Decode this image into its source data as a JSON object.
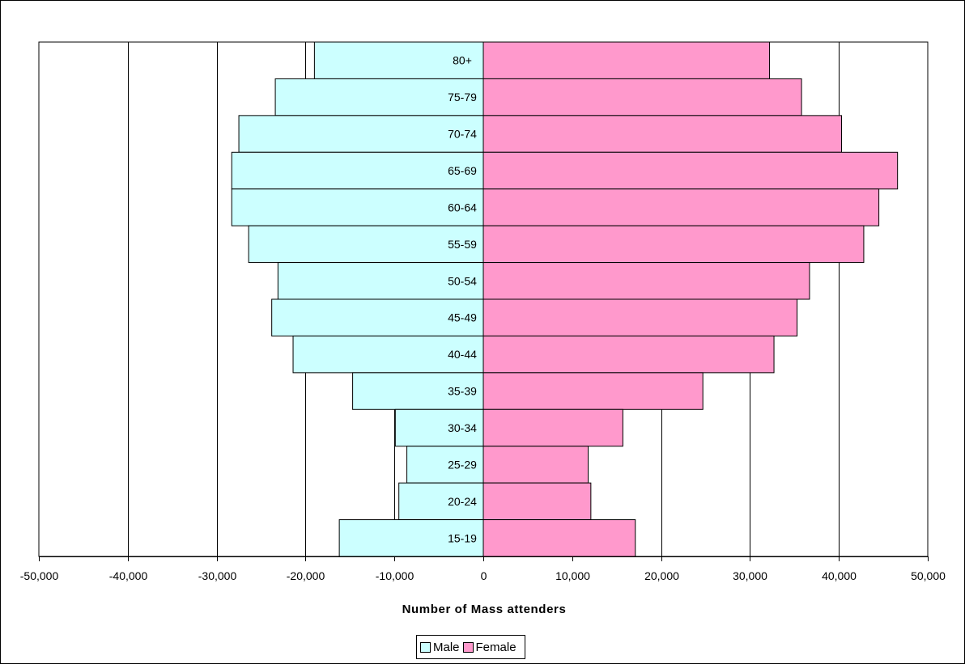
{
  "chart_data": {
    "type": "bar",
    "orientation": "horizontal",
    "title": "",
    "xlabel": "Number of Mass attenders",
    "ylabel": "",
    "xlim": [
      -50000,
      50000
    ],
    "xticks": [
      -50000,
      -40000,
      -30000,
      -20000,
      -10000,
      0,
      10000,
      20000,
      30000,
      40000,
      50000
    ],
    "xtick_labels": [
      "-50,000",
      "-40,000",
      "-30,000",
      "-20,000",
      "-10,000",
      "0",
      "10,000",
      "20,000",
      "30,000",
      "40,000",
      "50,000"
    ],
    "grid": "vertical",
    "legend_position": "bottom",
    "categories": [
      "80+",
      "75-79",
      "70-74",
      "65-69",
      "60-64",
      "55-59",
      "50-54",
      "45-49",
      "40-44",
      "35-39",
      "30-34",
      "25-29",
      "20-24",
      "15-19"
    ],
    "series": [
      {
        "name": "Male",
        "color": "#ccffff",
        "values": [
          -19000,
          -23400,
          -27500,
          -28300,
          -28300,
          -26400,
          -23100,
          -23800,
          -21400,
          -14700,
          -9900,
          -8600,
          -9500,
          -16200
        ]
      },
      {
        "name": "Female",
        "color": "#ff99cc",
        "values": [
          32200,
          35800,
          40300,
          46600,
          44500,
          42800,
          36700,
          35300,
          32700,
          24700,
          15700,
          11800,
          12100,
          17100
        ]
      }
    ]
  }
}
